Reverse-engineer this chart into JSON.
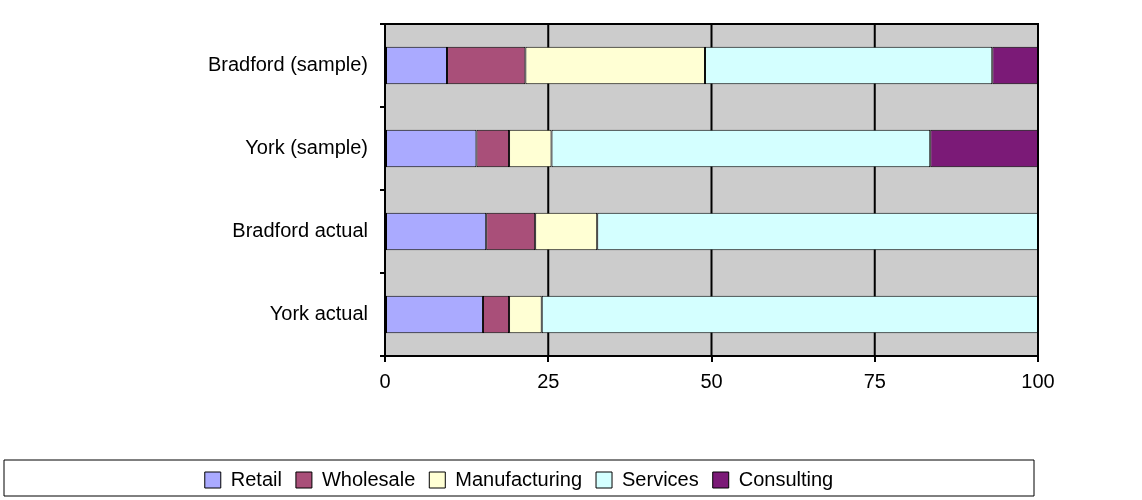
{
  "chart_data": {
    "type": "bar",
    "orientation": "horizontal",
    "stacked": true,
    "categories": [
      "Bradford (sample)",
      "York (sample)",
      "Bradford actual",
      "York actual"
    ],
    "series": [
      {
        "name": "Retail",
        "color": "#aaaaff",
        "values": [
          9.5,
          14,
          15.5,
          15
        ]
      },
      {
        "name": "Wholesale",
        "color": "#a94f79",
        "values": [
          12,
          5,
          7.5,
          4
        ]
      },
      {
        "name": "Manufacturing",
        "color": "#ffffd4",
        "values": [
          27.5,
          6.5,
          9.5,
          5
        ]
      },
      {
        "name": "Services",
        "color": "#d4ffff",
        "values": [
          44,
          58,
          67.5,
          76
        ]
      },
      {
        "name": "Consulting",
        "color": "#7b1a77",
        "values": [
          7,
          16.5,
          null,
          null
        ]
      }
    ],
    "xlim": [
      0,
      100
    ],
    "xticks": [
      0,
      25,
      50,
      75,
      100
    ],
    "grid": "x",
    "legend": "bottom"
  }
}
